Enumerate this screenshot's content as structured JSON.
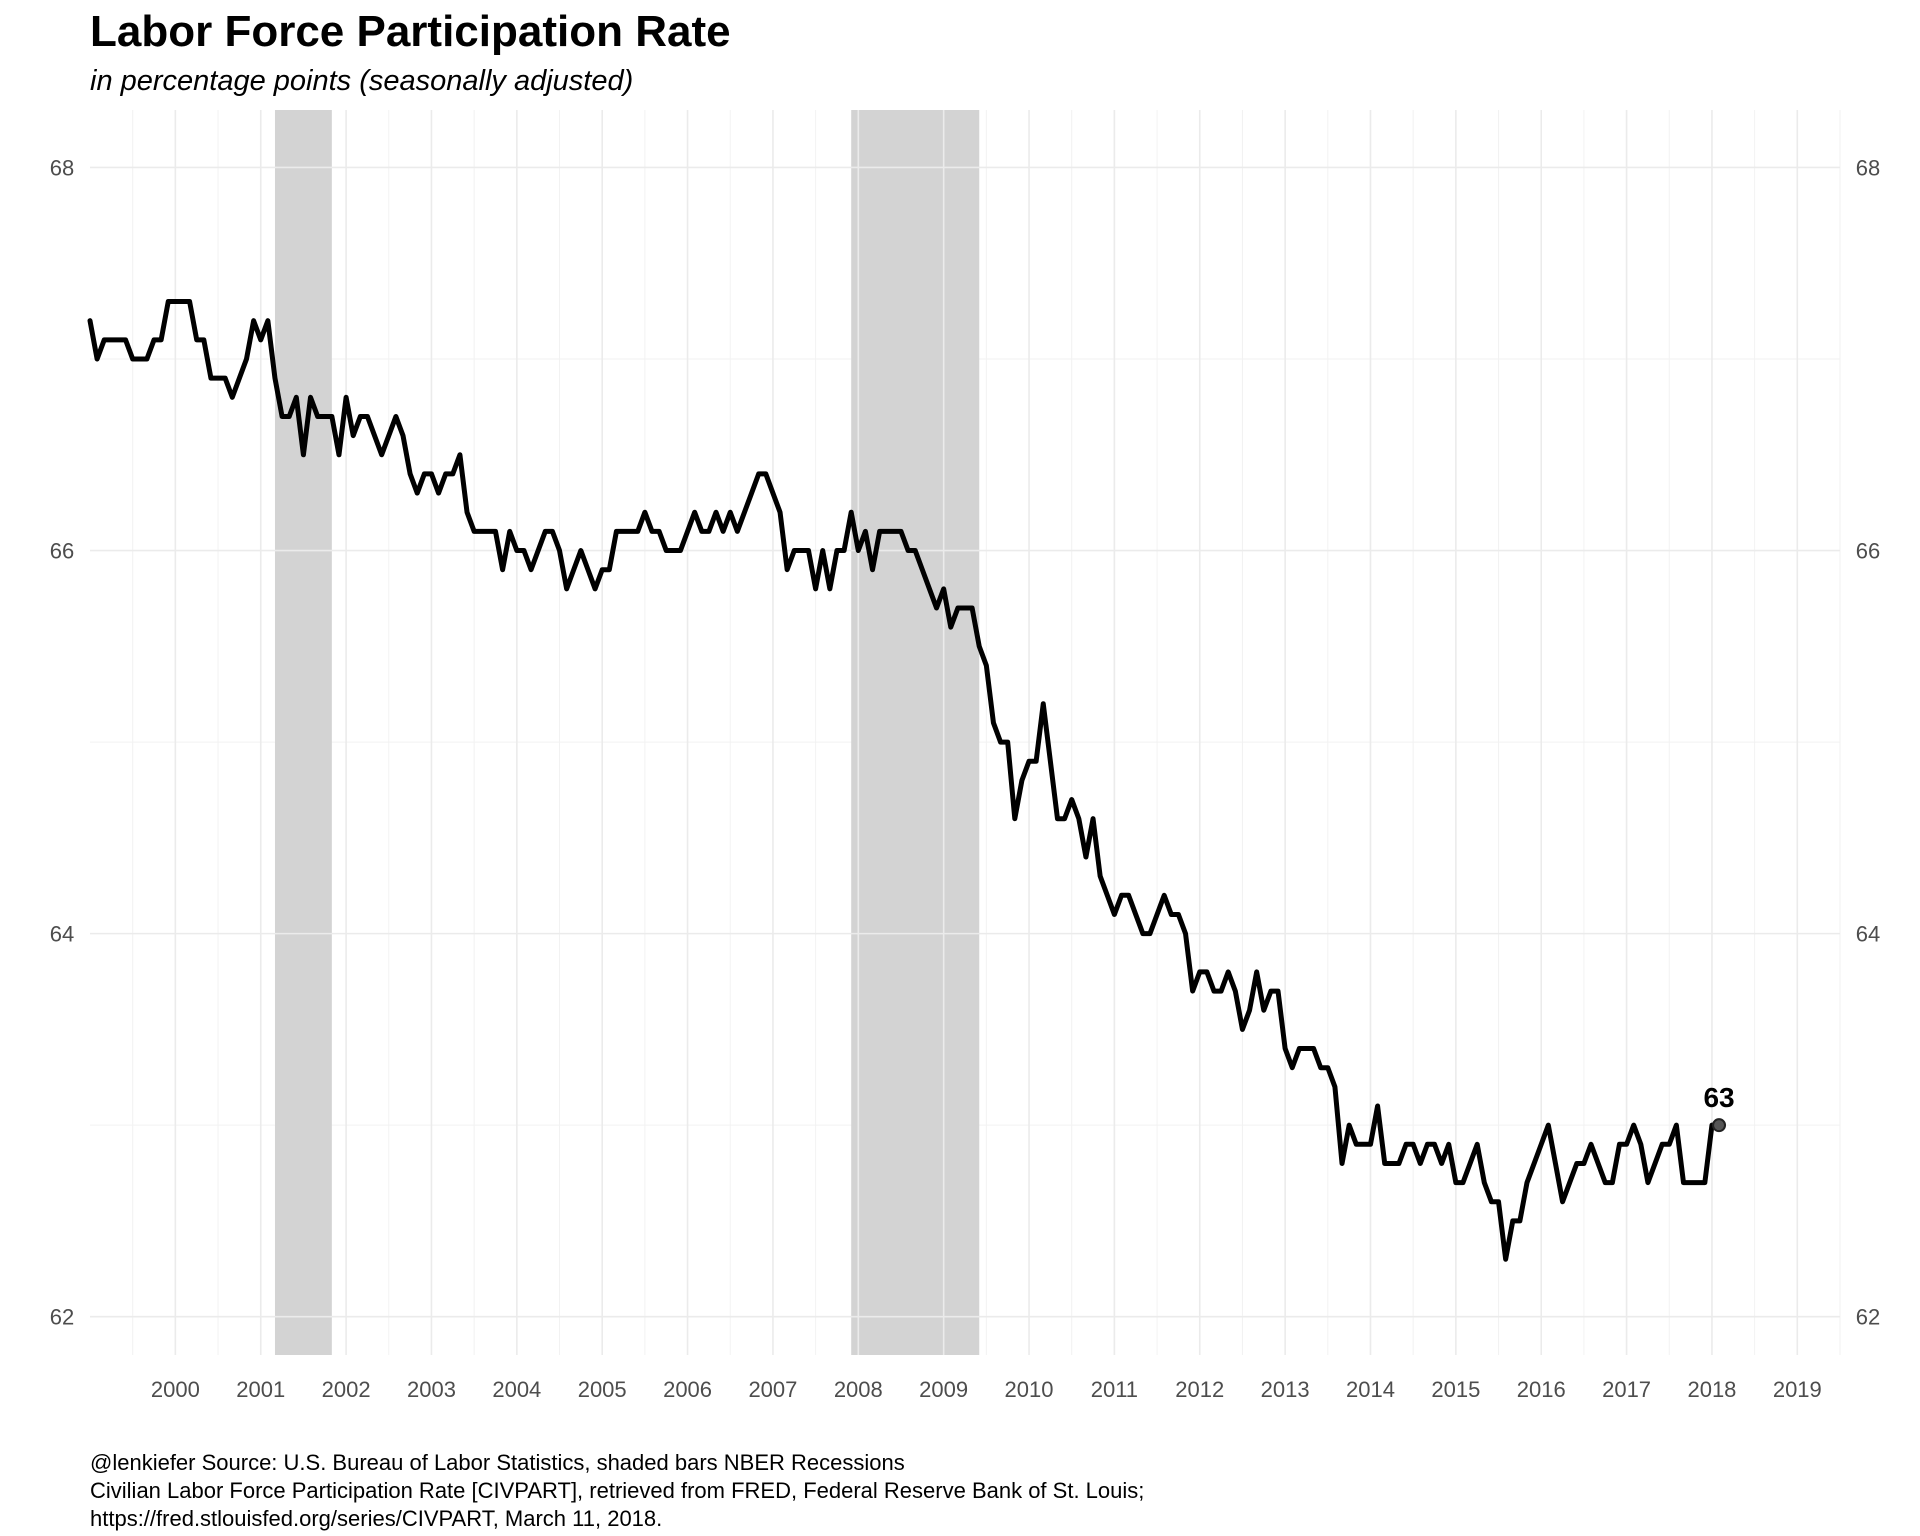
{
  "chart_data": {
    "type": "line",
    "title": "Labor Force Participation Rate",
    "subtitle": "in percentage points (seasonally adjusted)",
    "xlabel": "",
    "ylabel": "",
    "xlim": [
      1999.0,
      2019.5
    ],
    "ylim": [
      61.8,
      68.3
    ],
    "x_ticks": [
      2000,
      2001,
      2002,
      2003,
      2004,
      2005,
      2006,
      2007,
      2008,
      2009,
      2010,
      2011,
      2012,
      2013,
      2014,
      2015,
      2016,
      2017,
      2018,
      2019
    ],
    "y_ticks": [
      62,
      64,
      66,
      68
    ],
    "y_axis_both_sides": true,
    "grid": true,
    "recessions": [
      {
        "start": 2001.167,
        "end": 2001.833
      },
      {
        "start": 2007.917,
        "end": 2009.417
      }
    ],
    "end_label": {
      "x": 2018.083,
      "y": 63.0,
      "text": "63"
    },
    "caption": [
      "@lenkiefer Source: U.S. Bureau of Labor Statistics, shaded bars NBER Recessions",
      "Civilian Labor Force Participation Rate [CIVPART], retrieved from FRED, Federal Reserve Bank of St. Louis;",
      "https://fred.stlouisfed.org/series/CIVPART, March 11, 2018."
    ],
    "series": [
      {
        "color": "#000000",
        "start_year": 1999,
        "start_month": 1,
        "frequency": "monthly",
        "values": [
          67.2,
          67.0,
          67.1,
          67.1,
          67.1,
          67.1,
          67.0,
          67.0,
          67.0,
          67.1,
          67.1,
          67.3,
          67.3,
          67.3,
          67.3,
          67.1,
          67.1,
          66.9,
          66.9,
          66.9,
          66.8,
          66.9,
          67.0,
          67.2,
          67.1,
          67.2,
          66.9,
          66.7,
          66.7,
          66.8,
          66.5,
          66.8,
          66.7,
          66.7,
          66.7,
          66.5,
          66.8,
          66.6,
          66.7,
          66.7,
          66.6,
          66.5,
          66.6,
          66.7,
          66.6,
          66.4,
          66.3,
          66.4,
          66.4,
          66.3,
          66.4,
          66.4,
          66.5,
          66.2,
          66.1,
          66.1,
          66.1,
          66.1,
          65.9,
          66.1,
          66.0,
          66.0,
          65.9,
          66.0,
          66.1,
          66.1,
          66.0,
          65.8,
          65.9,
          66.0,
          65.9,
          65.8,
          65.9,
          65.9,
          66.1,
          66.1,
          66.1,
          66.1,
          66.2,
          66.1,
          66.1,
          66.0,
          66.0,
          66.0,
          66.1,
          66.2,
          66.1,
          66.1,
          66.2,
          66.1,
          66.2,
          66.1,
          66.2,
          66.3,
          66.4,
          66.4,
          66.3,
          66.2,
          65.9,
          66.0,
          66.0,
          66.0,
          65.8,
          66.0,
          65.8,
          66.0,
          66.0,
          66.2,
          66.0,
          66.1,
          65.9,
          66.1,
          66.1,
          66.1,
          66.1,
          66.0,
          66.0,
          65.9,
          65.8,
          65.7,
          65.8,
          65.6,
          65.7,
          65.7,
          65.7,
          65.5,
          65.4,
          65.1,
          65.0,
          65.0,
          64.6,
          64.8,
          64.9,
          64.9,
          65.2,
          64.9,
          64.6,
          64.6,
          64.7,
          64.6,
          64.4,
          64.6,
          64.3,
          64.2,
          64.1,
          64.2,
          64.2,
          64.1,
          64.0,
          64.0,
          64.1,
          64.2,
          64.1,
          64.1,
          64.0,
          63.7,
          63.8,
          63.8,
          63.7,
          63.7,
          63.8,
          63.7,
          63.5,
          63.6,
          63.8,
          63.6,
          63.7,
          63.7,
          63.4,
          63.3,
          63.4,
          63.4,
          63.4,
          63.3,
          63.3,
          63.2,
          62.8,
          63.0,
          62.9,
          62.9,
          62.9,
          63.1,
          62.8,
          62.8,
          62.8,
          62.9,
          62.9,
          62.8,
          62.9,
          62.9,
          62.8,
          62.9,
          62.7,
          62.7,
          62.8,
          62.9,
          62.7,
          62.6,
          62.6,
          62.3,
          62.5,
          62.5,
          62.7,
          62.8,
          62.9,
          63.0,
          62.8,
          62.6,
          62.7,
          62.8,
          62.8,
          62.9,
          62.8,
          62.7,
          62.7,
          62.9,
          62.9,
          63.0,
          62.9,
          62.7,
          62.8,
          62.9,
          62.9,
          63.0,
          62.7,
          62.7,
          62.7,
          62.7,
          63.0
        ]
      }
    ]
  }
}
